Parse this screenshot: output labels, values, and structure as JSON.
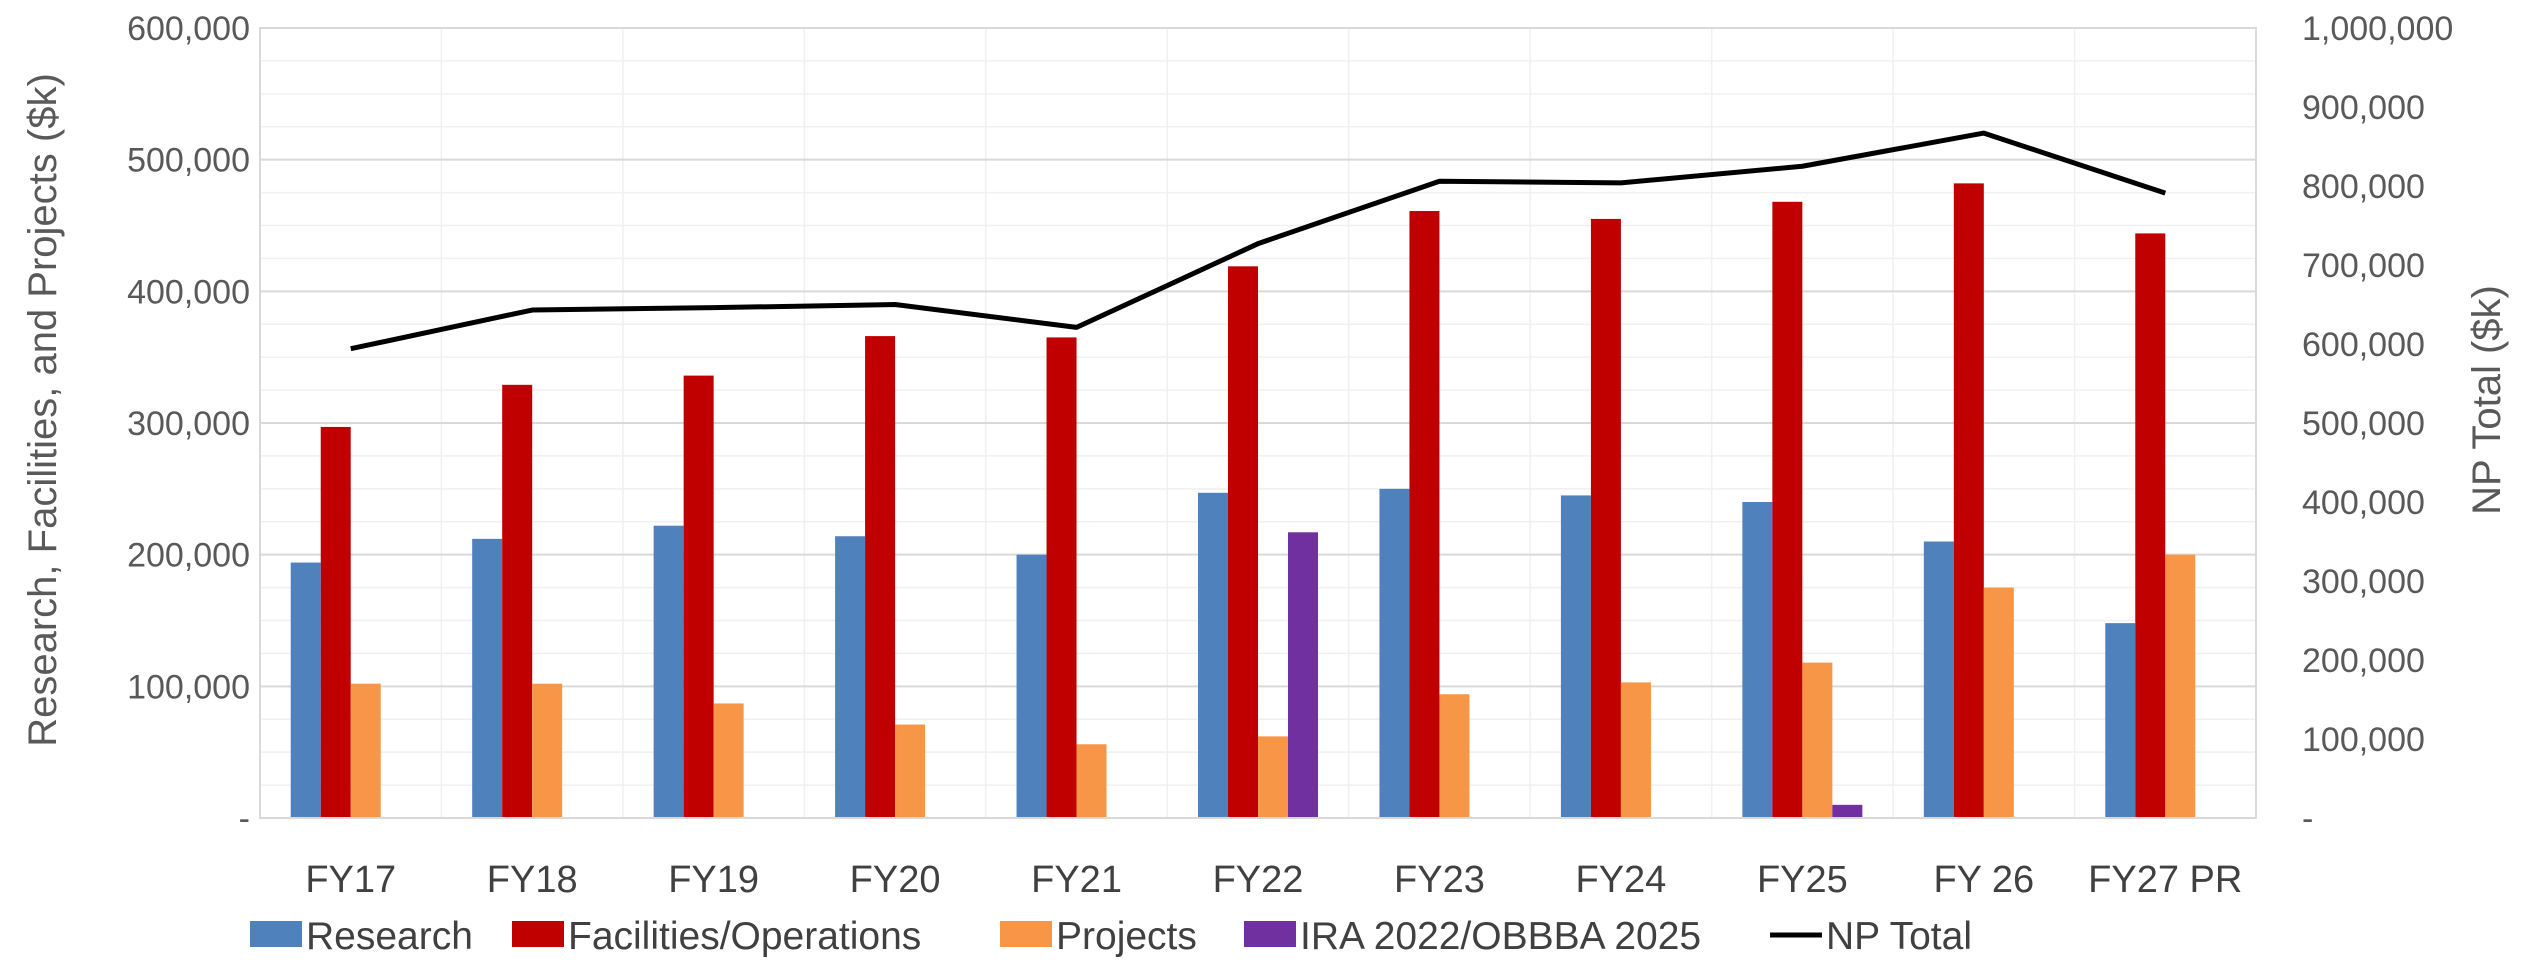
{
  "chart_data": {
    "type": "bar",
    "categories": [
      "FY17",
      "FY18",
      "FY19",
      "FY20",
      "FY21",
      "FY22",
      "FY23",
      "FY24",
      "FY25",
      "FY 26",
      "FY27 PR"
    ],
    "series": [
      {
        "name": "Research",
        "axis": "left",
        "kind": "bar",
        "color": "#4F81BD",
        "values": [
          194000,
          212000,
          222000,
          214000,
          200000,
          247000,
          250000,
          245000,
          240000,
          210000,
          148000
        ]
      },
      {
        "name": "Facilities/Operations",
        "axis": "left",
        "kind": "bar",
        "color": "#C00000",
        "values": [
          297000,
          329000,
          336000,
          366000,
          365000,
          419000,
          461000,
          455000,
          468000,
          482000,
          444000
        ]
      },
      {
        "name": "Projects",
        "axis": "left",
        "kind": "bar",
        "color": "#F79646",
        "values": [
          102000,
          102000,
          87000,
          71000,
          56000,
          62000,
          94000,
          103000,
          118000,
          175000,
          200000
        ]
      },
      {
        "name": "IRA 2022/OBBBA 2025",
        "axis": "left",
        "kind": "bar",
        "color": "#7030A0",
        "values": [
          0,
          0,
          0,
          0,
          0,
          217000,
          0,
          0,
          10000,
          0,
          0
        ]
      },
      {
        "name": "NP Total",
        "axis": "right",
        "kind": "line",
        "color": "#000000",
        "values": [
          594000,
          643000,
          646000,
          650000,
          621000,
          727000,
          806000,
          804000,
          825000,
          867000,
          791000
        ]
      }
    ],
    "y_left": {
      "label": "Research, Facilities, and Projects ($k)",
      "range": [
        0,
        600000
      ],
      "tick_labels": [
        "-",
        "100,000",
        "200,000",
        "300,000",
        "400,000",
        "500,000",
        "600,000"
      ]
    },
    "y_right": {
      "label": "NP Total ($k)",
      "range": [
        0,
        1000000
      ],
      "tick_labels": [
        "-",
        "100,000",
        "200,000",
        "300,000",
        "400,000",
        "500,000",
        "600,000",
        "700,000",
        "800,000",
        "900,000",
        "1,000,000"
      ]
    },
    "grid": true,
    "legend_position": "bottom"
  }
}
